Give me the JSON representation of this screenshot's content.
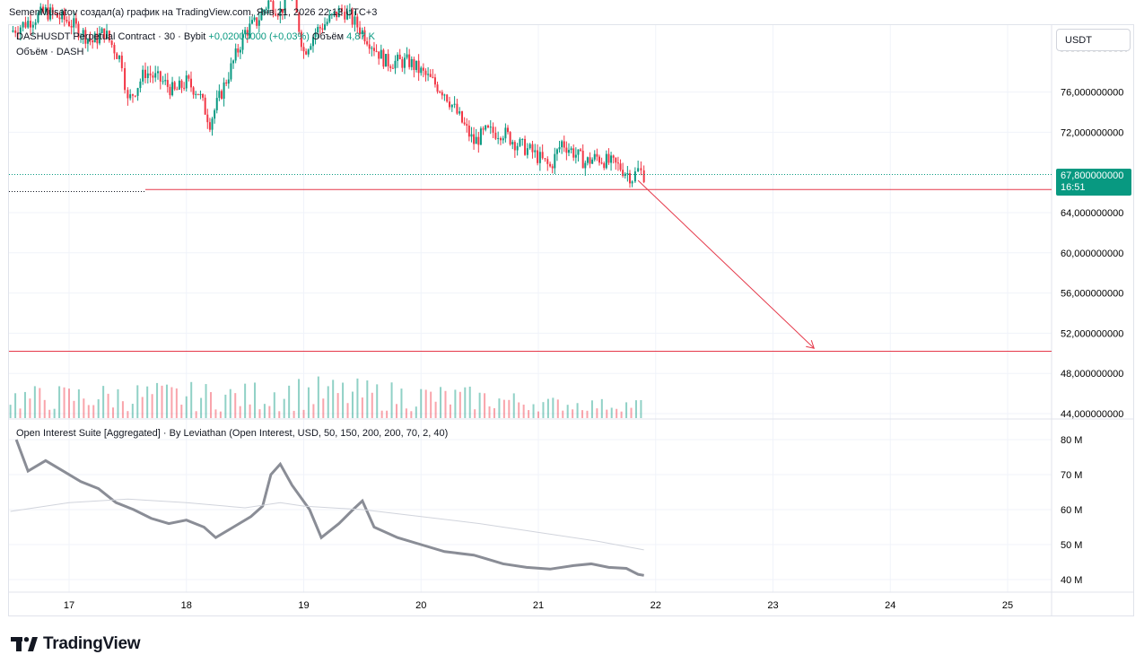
{
  "header": {
    "author_line": "SemenMusatov создал(а) график на TradingView.com, Янв 21, 2026 22:13 UTC+3"
  },
  "legend": {
    "symbol": "DASHUSDT Perpetual Contract · 30 · Bybit",
    "change": "+0,02000000 (+0,03%)",
    "volume_label": "Объём",
    "volume_value": "4,87 K",
    "volume_indicator": "Объём · DASH",
    "oscillator": "Open Interest Suite [Aggregated] · By Leviathan (Open Interest, USD, 50, 150, 200, 200, 70, 2, 40)"
  },
  "toolbar": {
    "currency": "USDT"
  },
  "last_price": {
    "value": "67,800000000",
    "countdown": "16:51"
  },
  "brand": {
    "name": "TradingView"
  },
  "colors": {
    "up": "#089981",
    "down": "#f23645",
    "grid": "#f0f3fa",
    "line": "#b2b5be",
    "annotation": "#e5394a"
  },
  "chart_data": [
    {
      "type": "candlestick",
      "title": "DASHUSDT Perpetual Contract · 30 · Bybit",
      "x_ticks": [
        "17",
        "18",
        "19",
        "20",
        "21",
        "22",
        "23",
        "24",
        "25"
      ],
      "y_ticks": [
        "76,000000000",
        "72,000000000",
        "64,000000000",
        "60,000000000",
        "56,000000000",
        "52,000000000",
        "48,000000000",
        "44,000000000"
      ],
      "ylim": [
        43.7,
        81.5
      ],
      "series": [
        {
          "name": "DASHUSDT",
          "x": [
            16.5,
            16.8,
            17.0,
            17.2,
            17.3,
            17.45,
            17.5,
            17.65,
            17.8,
            17.9,
            18.0,
            18.1,
            18.2,
            18.3,
            18.4,
            18.5,
            18.6,
            18.7,
            18.8,
            18.9,
            19.0,
            19.1,
            19.2,
            19.3,
            19.35,
            19.5,
            19.7,
            19.9,
            20.1,
            20.2,
            20.35,
            20.45,
            20.55,
            20.7,
            20.8,
            20.95,
            21.1,
            21.2,
            21.3,
            21.4,
            21.5,
            21.6,
            21.7,
            21.8,
            21.85,
            21.9
          ],
          "close": [
            82,
            84,
            83,
            81,
            82,
            79,
            75,
            78,
            77,
            76,
            77,
            76,
            73,
            76,
            79,
            82,
            83,
            85,
            84,
            86,
            80,
            82,
            83,
            84,
            84,
            82,
            79,
            79,
            77,
            76,
            73,
            71,
            72,
            72,
            71,
            70,
            68.5,
            71,
            70,
            69,
            69.5,
            69,
            68.5,
            67.5,
            68.2,
            67.8
          ]
        }
      ],
      "annotations": {
        "support_level": 66.3,
        "target_level": 50.2,
        "projection_from": {
          "x": 21.85,
          "y": 67.2
        },
        "projection_to": {
          "x": 23.35,
          "y": 50.5
        }
      }
    },
    {
      "type": "bar",
      "title": "Объём · DASH",
      "x": [
        16.7,
        17.65,
        18.5,
        18.75,
        19.1,
        20.5,
        21.1,
        21.6,
        21.85
      ],
      "values": [
        4.5,
        5.2,
        4.9,
        6.4,
        6.1,
        4.3,
        2.6,
        2.2,
        2.4
      ]
    },
    {
      "type": "line",
      "title": "Open Interest Suite [Aggregated] · By Leviathan",
      "y_ticks": [
        "80 M",
        "70 M",
        "60 M",
        "50 M",
        "40 M"
      ],
      "ylim": [
        38,
        82
      ],
      "series": [
        {
          "name": "Open Interest",
          "x": [
            16.55,
            16.65,
            16.8,
            16.95,
            17.1,
            17.25,
            17.4,
            17.55,
            17.7,
            17.85,
            18.0,
            18.15,
            18.25,
            18.4,
            18.55,
            18.65,
            18.72,
            18.8,
            18.9,
            19.05,
            19.15,
            19.3,
            19.42,
            19.5,
            19.6,
            19.8,
            20.0,
            20.2,
            20.45,
            20.55,
            20.7,
            20.9,
            21.1,
            21.3,
            21.45,
            21.6,
            21.75,
            21.85,
            21.9
          ],
          "values": [
            80,
            71,
            74,
            71,
            68,
            66,
            62,
            60,
            57.5,
            56,
            57,
            55,
            52,
            55,
            58,
            61,
            70,
            73,
            67,
            60,
            52,
            56,
            60,
            62.5,
            55,
            52,
            50,
            48,
            47,
            46,
            44.5,
            43.5,
            43,
            44,
            44.5,
            43.5,
            43.2,
            41.5,
            41.2
          ]
        },
        {
          "x": [
            16.5,
            17.0,
            17.5,
            18.0,
            18.5,
            18.8,
            19.0,
            19.5,
            20.0,
            20.5,
            21.0,
            21.5,
            21.9
          ],
          "values": [
            59.5,
            62,
            63,
            62,
            60.5,
            62,
            61,
            60,
            58,
            56,
            53.5,
            51,
            48.5
          ]
        }
      ]
    }
  ]
}
